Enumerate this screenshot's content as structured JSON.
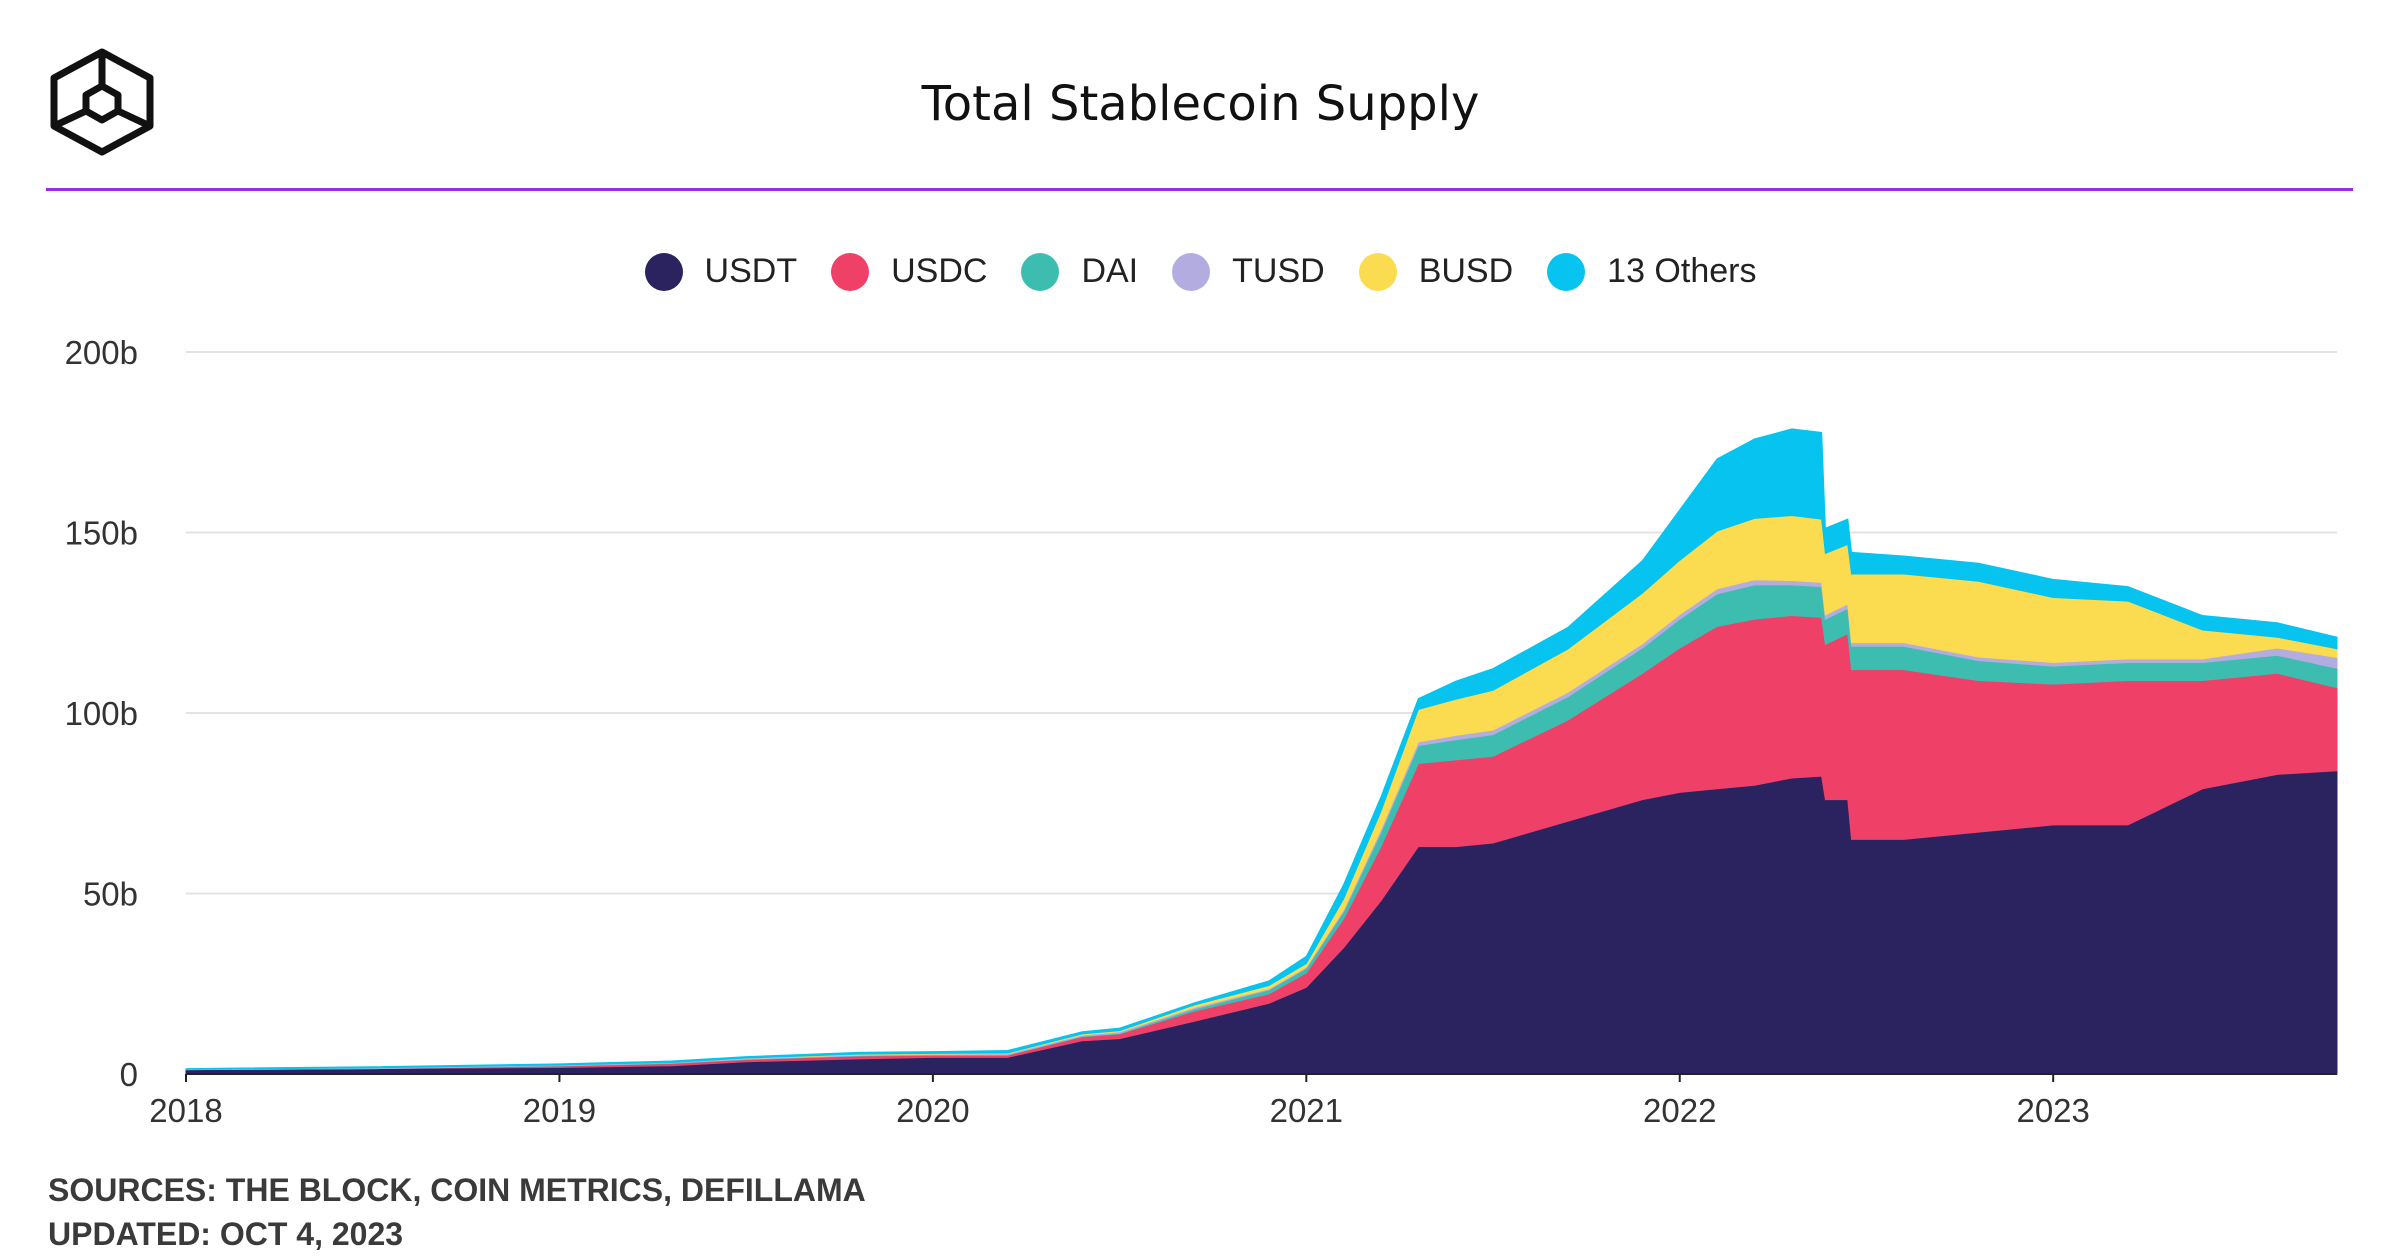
{
  "header": {
    "title": "Total Stablecoin Supply"
  },
  "footer": {
    "sources": "SOURCES: THE BLOCK, COIN METRICS, DEFILLAMA",
    "updated": "UPDATED: OCT 4, 2023"
  },
  "colors": {
    "accent_rule": "#9b2de0",
    "USDT": "#2b2260",
    "USDC": "#ef4068",
    "DAI": "#3dbdb0",
    "TUSD": "#b3ace0",
    "BUSD": "#fbdb4f",
    "13 Others": "#06c3ef"
  },
  "chart_data": {
    "type": "area",
    "stacked": true,
    "ylim": [
      0,
      200
    ],
    "y_unit": "b",
    "xlim": [
      2018.0,
      2023.76
    ],
    "x_ticks": [
      {
        "value": 2018,
        "label": "2018"
      },
      {
        "value": 2019,
        "label": "2019"
      },
      {
        "value": 2020,
        "label": "2020"
      },
      {
        "value": 2021,
        "label": "2021"
      },
      {
        "value": 2022,
        "label": "2022"
      },
      {
        "value": 2023,
        "label": "2023"
      }
    ],
    "y_ticks": [
      {
        "value": 0,
        "label": "0"
      },
      {
        "value": 50,
        "label": "50b"
      },
      {
        "value": 100,
        "label": "100b"
      },
      {
        "value": 150,
        "label": "150b"
      },
      {
        "value": 200,
        "label": "200b"
      }
    ],
    "grid": "horizontal",
    "legend_position": "top-center",
    "x": [
      2018.0,
      2018.5,
      2019.0,
      2019.3,
      2019.5,
      2019.8,
      2020.0,
      2020.2,
      2020.4,
      2020.5,
      2020.7,
      2020.9,
      2021.0,
      2021.1,
      2021.2,
      2021.3,
      2021.4,
      2021.5,
      2021.7,
      2021.9,
      2022.0,
      2022.1,
      2022.2,
      2022.3,
      2022.38,
      2022.39,
      2022.45,
      2022.46,
      2022.6,
      2022.8,
      2023.0,
      2023.2,
      2023.4,
      2023.6,
      2023.76
    ],
    "series": [
      {
        "name": "USDT",
        "values": [
          1.2,
          1.5,
          1.8,
          2.3,
          3.4,
          4.2,
          4.6,
          4.6,
          9.2,
          9.8,
          14.6,
          19.6,
          24,
          35,
          48,
          63,
          63,
          64,
          70,
          76,
          78,
          79,
          80,
          82,
          82.5,
          76,
          76,
          65,
          65,
          67,
          69,
          69,
          79,
          83,
          84
        ]
      },
      {
        "name": "USDC",
        "values": [
          0,
          0,
          0.4,
          0.6,
          0.6,
          0.8,
          0.6,
          0.6,
          1.1,
          1.3,
          2.8,
          2.6,
          4,
          8,
          15,
          23,
          24,
          24,
          28,
          35,
          40,
          45,
          46,
          45,
          44,
          43,
          46,
          47,
          47,
          42,
          39,
          40,
          30,
          28,
          23
        ]
      },
      {
        "name": "DAI",
        "values": [
          0,
          0,
          0.1,
          0.1,
          0.1,
          0.1,
          0.1,
          0.1,
          0.2,
          0.2,
          0.6,
          1.1,
          1.3,
          2,
          4,
          5,
          5.6,
          6,
          6.5,
          7,
          8,
          9,
          9.5,
          8.5,
          8.5,
          7,
          7,
          6.5,
          6.5,
          5.5,
          5,
          5,
          5,
          5,
          5.4
        ]
      },
      {
        "name": "TUSD",
        "values": [
          0.1,
          0.2,
          0.2,
          0.2,
          0.2,
          0.2,
          0.2,
          0.3,
          0.3,
          0.4,
          0.4,
          0.3,
          0.3,
          0.5,
          0.8,
          1,
          1.2,
          1.3,
          1.2,
          1.2,
          1.3,
          1.4,
          1.4,
          1.2,
          1.2,
          1.2,
          1.2,
          1,
          1,
          1,
          1,
          1,
          1,
          2,
          3
        ]
      },
      {
        "name": "BUSD",
        "values": [
          0,
          0,
          0,
          0,
          0.1,
          0.2,
          0.2,
          0.2,
          0.3,
          0.3,
          0.7,
          0.9,
          1,
          3,
          5,
          9,
          10,
          11,
          12,
          14,
          15,
          16,
          17,
          18,
          17.5,
          17,
          16.5,
          19,
          19,
          21,
          18,
          16,
          8,
          3,
          2.4
        ]
      },
      {
        "name": "13 Others",
        "values": [
          0.2,
          0.3,
          0.3,
          0.4,
          0.4,
          0.5,
          0.5,
          0.7,
          0.6,
          0.7,
          0.6,
          1.3,
          2,
          4,
          4,
          3,
          5,
          6,
          6,
          9,
          14,
          20,
          22,
          24,
          24,
          7,
          7,
          6,
          5,
          5,
          5,
          4,
          4,
          4,
          3.2
        ]
      }
    ]
  }
}
